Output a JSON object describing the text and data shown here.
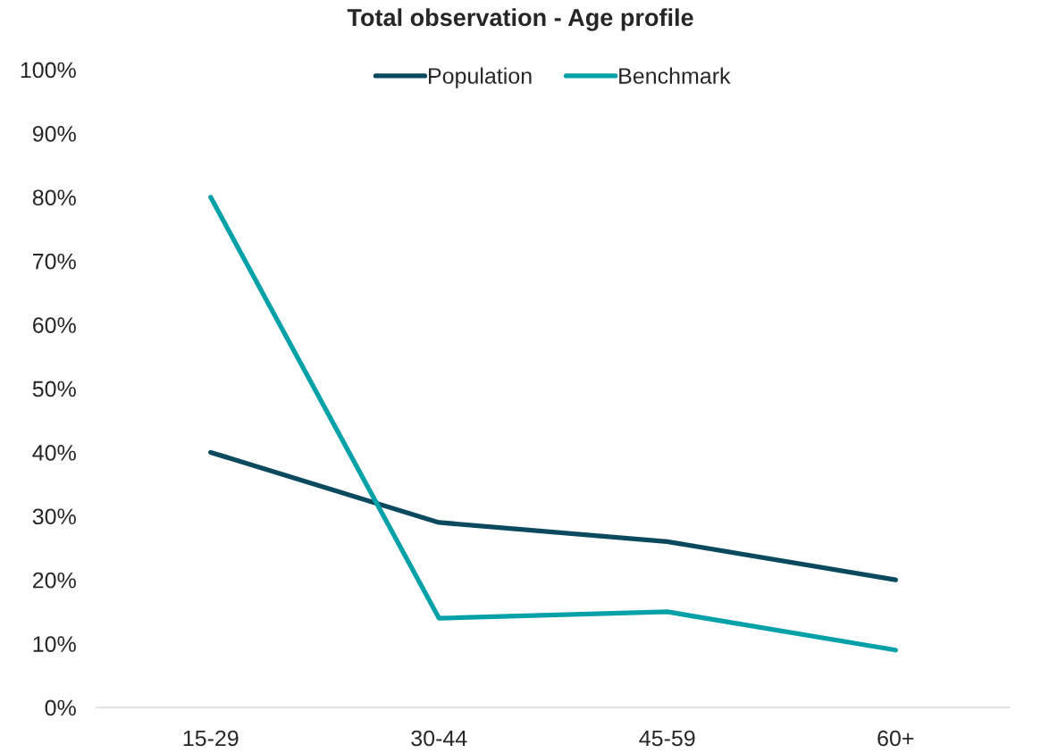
{
  "chart_data": {
    "type": "line",
    "title": "Total observation - Age profile",
    "categories": [
      "15-29",
      "30-44",
      "45-59",
      "60+"
    ],
    "series": [
      {
        "name": "Population",
        "color": "#0b4a5e",
        "values": [
          40,
          29,
          26,
          20
        ]
      },
      {
        "name": "Benchmark",
        "color": "#04a1a8",
        "values": [
          80,
          14,
          15,
          9
        ]
      }
    ],
    "ylim": [
      0,
      100
    ],
    "yticks": [
      {
        "value": 0,
        "label": "0%"
      },
      {
        "value": 10,
        "label": "10%"
      },
      {
        "value": 20,
        "label": "20%"
      },
      {
        "value": 30,
        "label": "30%"
      },
      {
        "value": 40,
        "label": "40%"
      },
      {
        "value": 50,
        "label": "50%"
      },
      {
        "value": 60,
        "label": "60%"
      },
      {
        "value": 70,
        "label": "70%"
      },
      {
        "value": 80,
        "label": "80%"
      },
      {
        "value": 90,
        "label": "90%"
      },
      {
        "value": 100,
        "label": "100%"
      }
    ],
    "grid": false,
    "legend": "top",
    "marker": "none",
    "line_style": "solid"
  }
}
